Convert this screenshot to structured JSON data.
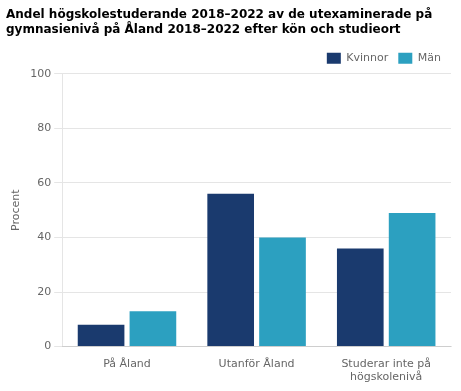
{
  "chart_data": {
    "type": "bar",
    "title": "Andel högskolestuderande 2018–2022 av de utexaminerade på\ngymnasienivå på Åland 2018–2022 efter kön och studieort",
    "y_label": "Procent",
    "categories": [
      "På Åland",
      "Utanför Åland",
      "Studerar inte på\nhögskolenivå"
    ],
    "series": [
      {
        "name": "Kvinnor",
        "color": "#1a3a6e",
        "values": [
          8,
          56,
          36
        ]
      },
      {
        "name": "Män",
        "color": "#2ca0c0",
        "values": [
          13,
          40,
          49
        ]
      }
    ],
    "ylim": [
      0,
      100
    ],
    "yticks": [
      0,
      20,
      40,
      60,
      80,
      100
    ],
    "grid": true,
    "legend": "upper right"
  }
}
